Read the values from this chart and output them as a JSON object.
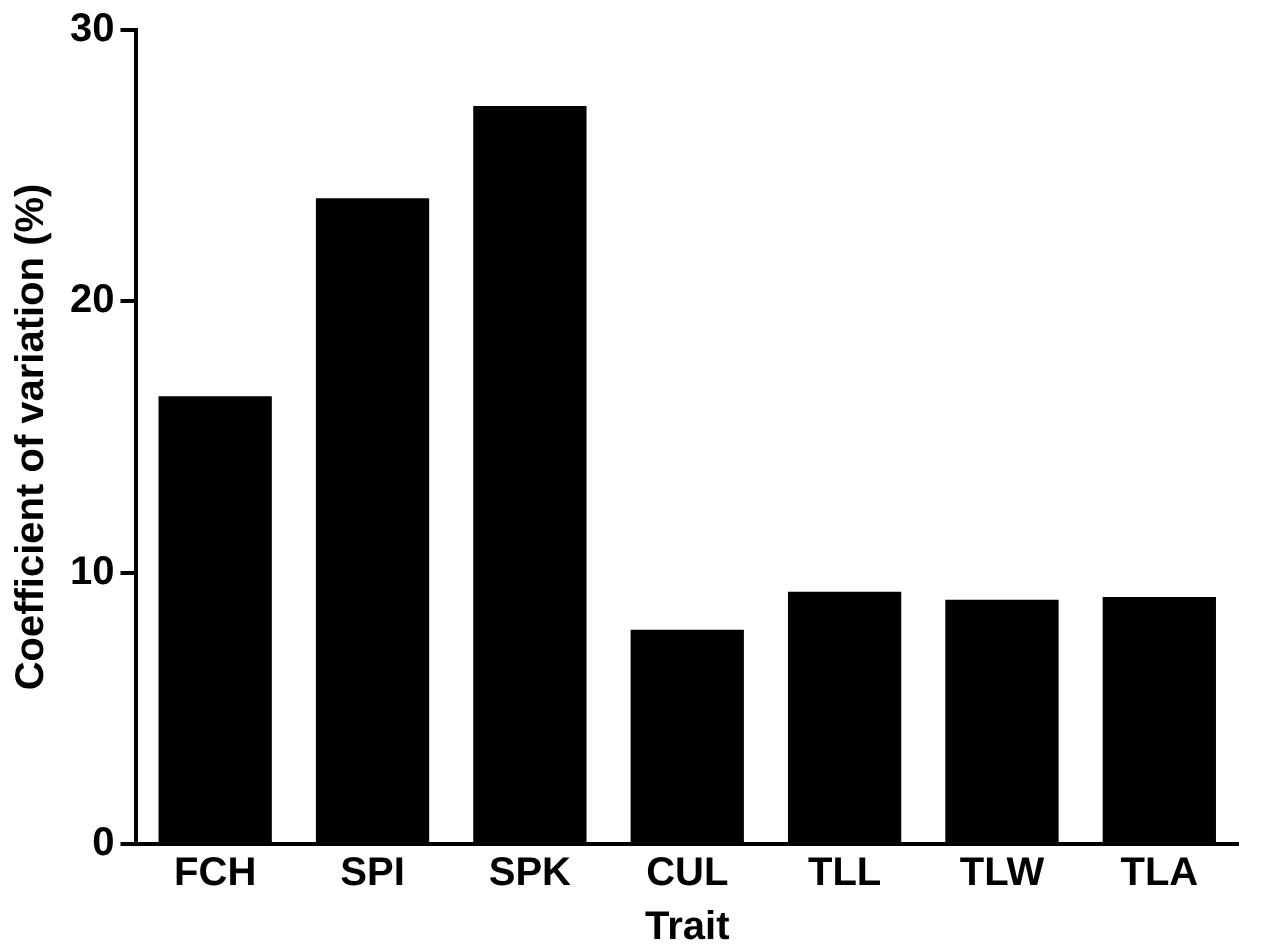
{
  "chart_data": {
    "type": "bar",
    "xlabel": "Trait",
    "ylabel": "Coefficient of variation (%)",
    "categories": [
      "FCH",
      "SPI",
      "SPK",
      "CUL",
      "TLL",
      "TLW",
      "TLA"
    ],
    "values": [
      16.5,
      23.8,
      27.2,
      7.9,
      9.3,
      9.0,
      9.1
    ],
    "color": "#000000",
    "ylim": [
      0,
      30
    ],
    "yticks": [
      0,
      10,
      20,
      30
    ],
    "grid": false,
    "legend": false
  }
}
